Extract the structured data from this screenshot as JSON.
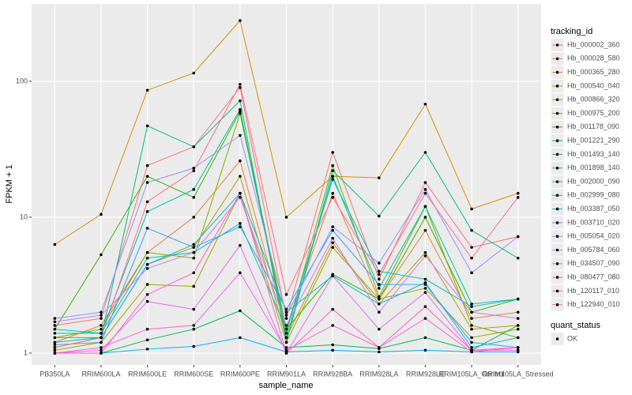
{
  "chart_data": {
    "type": "line",
    "x_label": "sample_name",
    "y_label": "FPKM + 1",
    "legend_title": "tracking_id",
    "legend_position": "right",
    "shape_legend_title": "quant_status",
    "shape_legend_labels": [
      "OK"
    ],
    "log_scale": true,
    "grid": true,
    "categories": [
      "PB350LA",
      "RRIM600LA",
      "RRIM600LE",
      "RRIM600SE",
      "RRIM600PE",
      "RRIM901LA",
      "RRIM928BA",
      "RRIM928LA",
      "RRIM928LE",
      "RRIM105LA_Control",
      "RRIM105LA_Stressed"
    ],
    "ylim": [
      0.818,
      371
    ],
    "yticks": [
      1,
      10,
      100
    ],
    "series": [
      {
        "name": "Hb_000002_360",
        "color": "#F8766D",
        "values": [
          1.6,
          1.8,
          24,
          33,
          90,
          1.8,
          30,
          3.5,
          18,
          6,
          7.2
        ]
      },
      {
        "name": "Hb_000028_580",
        "color": "#EA8331",
        "values": [
          1.2,
          1.6,
          5.5,
          10,
          26,
          1.5,
          15,
          2.5,
          8,
          1.8,
          2
        ]
      },
      {
        "name": "Hb_000365_280",
        "color": "#D89000",
        "values": [
          6.3,
          10.5,
          86,
          115,
          280,
          10,
          20,
          19.5,
          68,
          11.5,
          15
        ]
      },
      {
        "name": "Hb_000540_040",
        "color": "#C09B00",
        "values": [
          1.1,
          1.3,
          4.5,
          6,
          20,
          1.3,
          6.5,
          2.3,
          5.5,
          1.5,
          1.6
        ]
      },
      {
        "name": "Hb_000866_320",
        "color": "#A3A500",
        "values": [
          1.05,
          1.2,
          3.2,
          3.1,
          15,
          1.2,
          6,
          2.5,
          3,
          1.3,
          1.5
        ]
      },
      {
        "name": "Hb_000975_200",
        "color": "#7CAE00",
        "values": [
          1.3,
          1.5,
          5.5,
          5,
          58,
          1.4,
          24,
          2.6,
          12,
          1.6,
          1.3
        ]
      },
      {
        "name": "Hb_001178_090",
        "color": "#39B600",
        "values": [
          1.5,
          5.3,
          20,
          14,
          60,
          1.5,
          3.8,
          2.5,
          10,
          2,
          2.5
        ]
      },
      {
        "name": "Hb_001221_290",
        "color": "#00BB4E",
        "values": [
          1,
          1,
          1.25,
          1.5,
          2.05,
          1.1,
          1.15,
          1.08,
          1.3,
          1.05,
          1.6
        ]
      },
      {
        "name": "Hb_001493_140",
        "color": "#00BF7D",
        "values": [
          1.2,
          1.3,
          47,
          33,
          72,
          1.2,
          22,
          10.2,
          30,
          8,
          5
        ]
      },
      {
        "name": "Hb_001898_140",
        "color": "#00C1A3",
        "values": [
          1.4,
          1.4,
          11,
          16,
          62,
          1.3,
          20,
          3,
          12,
          2.3,
          2.5
        ]
      },
      {
        "name": "Hb_002000_090",
        "color": "#00BFC4",
        "values": [
          1.5,
          1.4,
          5,
          5.5,
          9,
          1.5,
          19,
          4,
          3.5,
          2.2,
          2.5
        ]
      },
      {
        "name": "Hb_002999_080",
        "color": "#00BAE0",
        "values": [
          1.3,
          1.3,
          4.5,
          6.3,
          15,
          2,
          3.7,
          2.3,
          3.3,
          1.1,
          1.3
        ]
      },
      {
        "name": "Hb_003387_050",
        "color": "#00B0F6",
        "values": [
          1,
          1,
          1.07,
          1.12,
          1.3,
          1.02,
          1.05,
          1.02,
          1.05,
          1.02,
          1.02
        ]
      },
      {
        "name": "Hb_003710_020",
        "color": "#35A2FF",
        "values": [
          1.15,
          1.2,
          8.3,
          6,
          8.5,
          2.1,
          8,
          3.2,
          3.2,
          1.2,
          1.1
        ]
      },
      {
        "name": "Hb_005054_020",
        "color": "#9590FF",
        "values": [
          1.8,
          2,
          18,
          23,
          40,
          1.9,
          8.5,
          4.6,
          16,
          3.9,
          7.2
        ]
      },
      {
        "name": "Hb_005784_060",
        "color": "#C77CFF",
        "values": [
          1.7,
          1.9,
          4.2,
          5.5,
          14,
          1.6,
          7,
          2,
          5.2,
          2,
          1.8
        ]
      },
      {
        "name": "Hb_034507_090",
        "color": "#E76BF3",
        "values": [
          1,
          1.05,
          2.4,
          2.1,
          6.2,
          1,
          3.7,
          1.5,
          2.8,
          1.05,
          1.05
        ]
      },
      {
        "name": "Hb_080477_080",
        "color": "#FA62DB",
        "values": [
          1,
          1.1,
          1.5,
          1.6,
          3.9,
          1.05,
          1.6,
          1.1,
          1.8,
          1.02,
          1.1
        ]
      },
      {
        "name": "Hb_120117_010",
        "color": "#FF62BC",
        "values": [
          1,
          1,
          2.7,
          3.9,
          15,
          1,
          2.1,
          1.1,
          2.2,
          1.05,
          1.1
        ]
      },
      {
        "name": "Hb_122940_010",
        "color": "#FF6C91",
        "values": [
          1.1,
          1.3,
          13,
          22,
          95,
          2.7,
          14,
          3.8,
          15,
          5,
          14
        ]
      }
    ]
  }
}
